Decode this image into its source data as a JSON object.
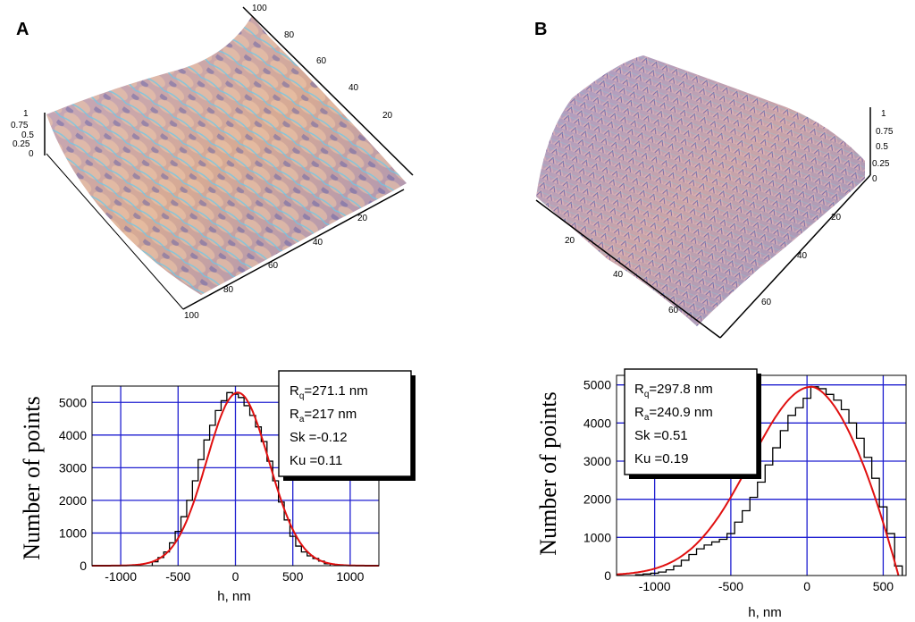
{
  "panels": {
    "a": "A",
    "b": "B"
  },
  "colors": {
    "grid": "#1f1fd0",
    "fit": "#e01010",
    "hist": "#000000",
    "surfaceA": "#c9a0a0",
    "surfaceB": "#9c94c4"
  },
  "surfaces": {
    "a": {
      "z_ticks": [
        "1",
        "0.75",
        "0.5",
        "0.25",
        "0"
      ],
      "back_ticks": [
        "100",
        "80",
        "60",
        "40",
        "20"
      ],
      "front_ticks": [
        "20",
        "40",
        "60",
        "80",
        "100"
      ]
    },
    "b": {
      "z_ticks": [
        "1",
        "0.75",
        "0.5",
        "0.25",
        "0"
      ],
      "left_ticks": [
        "20",
        "40",
        "60"
      ],
      "right_ticks": [
        "20",
        "40",
        "60"
      ]
    }
  },
  "chart_data": [
    {
      "type": "bar",
      "title": "",
      "xlabel": "h, nm",
      "ylabel": "Number of points",
      "xlim": [
        -1250,
        1250
      ],
      "ylim": [
        0,
        5500
      ],
      "x_ticks": [
        -1000,
        -500,
        0,
        500,
        1000
      ],
      "y_ticks": [
        0,
        1000,
        2000,
        3000,
        4000,
        5000
      ],
      "grid": true,
      "stats": [
        "Rq=271.1 nm",
        "Ra=217 nm",
        "Sk =-0.12",
        "Ku =0.11"
      ],
      "stat_parts": [
        [
          "R",
          "q",
          "=271.1 nm"
        ],
        [
          "R",
          "a",
          "=217 nm"
        ],
        [
          "Sk =-0.12",
          "",
          ""
        ],
        [
          "Ku =0.11",
          "",
          ""
        ]
      ],
      "bin_width": 50,
      "histogram_x": [
        -700,
        -650,
        -600,
        -550,
        -500,
        -450,
        -400,
        -350,
        -300,
        -250,
        -200,
        -150,
        -100,
        -50,
        0,
        50,
        100,
        150,
        200,
        250,
        300,
        350,
        400,
        450,
        500,
        550,
        600,
        650,
        700,
        750,
        800
      ],
      "histogram_y": [
        120,
        250,
        420,
        700,
        1050,
        1500,
        2000,
        2600,
        3250,
        3850,
        4300,
        4750,
        5050,
        5300,
        5250,
        5150,
        4900,
        4600,
        4250,
        3800,
        3200,
        2600,
        1950,
        1400,
        900,
        600,
        420,
        300,
        220,
        140,
        60
      ],
      "fit": {
        "name": "Gaussian fit",
        "mean": 20,
        "sigma": 271.1,
        "peak": 5300
      }
    },
    {
      "type": "bar",
      "title": "",
      "xlabel": "h, nm",
      "ylabel": "Number of points",
      "xlim": [
        -1250,
        650
      ],
      "ylim": [
        0,
        5250
      ],
      "x_ticks": [
        -1000,
        -500,
        0,
        500
      ],
      "y_ticks": [
        0,
        1000,
        2000,
        3000,
        4000,
        5000
      ],
      "grid": true,
      "stats": [
        "Rq=297.8 nm",
        "Ra=240.9 nm",
        "Sk =0.51",
        "Ku =0.19"
      ],
      "stat_parts": [
        [
          "R",
          "q",
          "=297.8 nm"
        ],
        [
          "R",
          "a",
          "=240.9 nm"
        ],
        [
          "Sk =0.51",
          "",
          ""
        ],
        [
          "Ku =0.19",
          "",
          ""
        ]
      ],
      "bin_width": 50,
      "histogram_x": [
        -1100,
        -1050,
        -1000,
        -950,
        -900,
        -850,
        -800,
        -750,
        -700,
        -650,
        -600,
        -550,
        -500,
        -450,
        -400,
        -350,
        -300,
        -250,
        -200,
        -150,
        -100,
        -50,
        0,
        50,
        100,
        150,
        200,
        250,
        300,
        350,
        400,
        450,
        500,
        550,
        600
      ],
      "histogram_y": [
        20,
        40,
        60,
        90,
        150,
        250,
        400,
        550,
        700,
        800,
        880,
        950,
        1100,
        1400,
        1700,
        2050,
        2450,
        2900,
        3350,
        3800,
        4200,
        4400,
        4650,
        4950,
        4900,
        4750,
        4600,
        4350,
        4000,
        3600,
        3100,
        2550,
        1800,
        1100,
        250
      ],
      "fit": {
        "name": "skewed fit",
        "mode": 30,
        "peak": 4950
      }
    }
  ]
}
